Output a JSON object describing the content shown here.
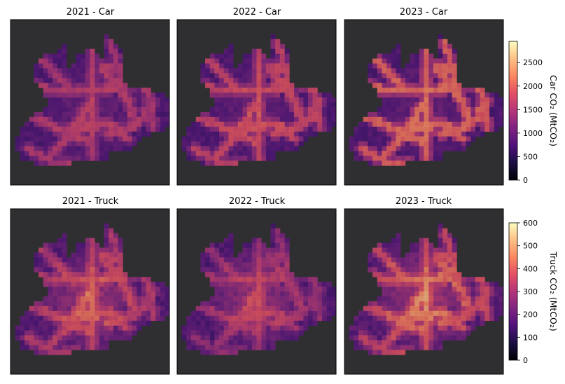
{
  "figure": {
    "layout": "2 rows x 3 columns of gridded CO2 emission maps over a dark basemap"
  },
  "colors": {
    "colormap": "magma",
    "basemap": "#2f2f31"
  },
  "chart_data": [
    {
      "type": "heatmap",
      "title": "2021 - Car",
      "year": 2021,
      "vehicle": "Car",
      "intensity_scale": 0.62,
      "colorbar": "car"
    },
    {
      "type": "heatmap",
      "title": "2022 - Car",
      "year": 2022,
      "vehicle": "Car",
      "intensity_scale": 0.78,
      "colorbar": "car"
    },
    {
      "type": "heatmap",
      "title": "2023 - Car",
      "year": 2023,
      "vehicle": "Car",
      "intensity_scale": 1.0,
      "colorbar": "car"
    },
    {
      "type": "heatmap",
      "title": "2021 - Truck",
      "year": 2021,
      "vehicle": "Truck",
      "intensity_scale": 0.85,
      "colorbar": "truck"
    },
    {
      "type": "heatmap",
      "title": "2022 - Truck",
      "year": 2022,
      "vehicle": "Truck",
      "intensity_scale": 0.68,
      "colorbar": "truck"
    },
    {
      "type": "heatmap",
      "title": "2023 - Truck",
      "year": 2023,
      "vehicle": "Truck",
      "intensity_scale": 1.0,
      "colorbar": "truck"
    }
  ],
  "colorbars": {
    "car": {
      "label": "Car CO₂ (MtCO₂)",
      "range": [
        0,
        2950
      ],
      "ticks": [
        0,
        500,
        1000,
        1500,
        2000,
        2500
      ]
    },
    "truck": {
      "label": "Truck CO₂ (MtCO₂)",
      "range": [
        0,
        600
      ],
      "ticks": [
        0,
        100,
        200,
        300,
        400,
        500,
        600
      ]
    }
  }
}
